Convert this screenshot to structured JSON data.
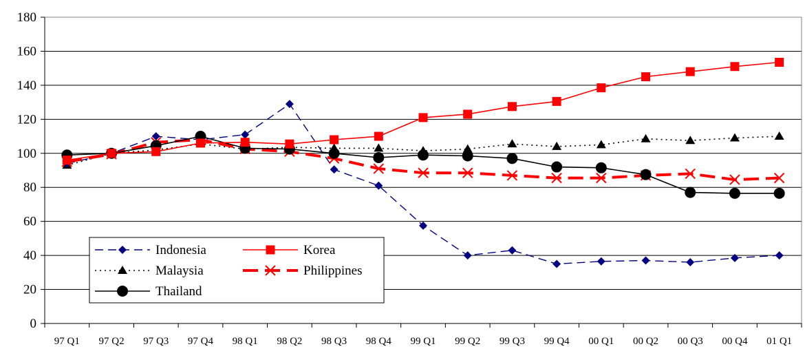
{
  "chart_data": {
    "type": "line",
    "title": "",
    "xlabel": "",
    "ylabel": "",
    "ylim": [
      0,
      180
    ],
    "yticks": [
      "0",
      "20",
      "40",
      "60",
      "80",
      "100",
      "120",
      "140",
      "160",
      "180"
    ],
    "grid": "horizontal",
    "legend_position": "bottom-left",
    "categories": [
      "97 Q1",
      "97 Q2",
      "97 Q3",
      "97 Q4",
      "98 Q1",
      "98 Q2",
      "98 Q3",
      "98 Q4",
      "99 Q1",
      "99 Q2",
      "99 Q3",
      "99 Q4",
      "00 Q1",
      "00 Q2",
      "00 Q3",
      "00 Q4",
      "01 Q1"
    ],
    "series": [
      {
        "name": "Indonesia",
        "color": "#000080",
        "line": "long-dash",
        "marker": "diamond",
        "values": [
          94,
          100,
          110,
          108,
          111,
          129,
          90.5,
          81,
          57.5,
          40,
          43,
          35,
          36.5,
          37,
          36,
          38.5,
          40
        ]
      },
      {
        "name": "Korea",
        "color": "#ff0000",
        "line": "solid",
        "marker": "square",
        "values": [
          96,
          100,
          101,
          106,
          106.5,
          105.5,
          108,
          110,
          121,
          123,
          127.5,
          130.5,
          138.5,
          145,
          148,
          151,
          153.5
        ]
      },
      {
        "name": "Malaysia",
        "color": "#000000",
        "line": "dotted",
        "marker": "triangle",
        "values": [
          93,
          100,
          102,
          105.5,
          102.5,
          103.5,
          103,
          103,
          101.5,
          102.5,
          105.5,
          104,
          105,
          108.5,
          107.5,
          109,
          110
        ]
      },
      {
        "name": "Philippines",
        "color": "#ff0000",
        "line": "thick-dash",
        "marker": "x",
        "values": [
          95,
          99.5,
          106.5,
          108,
          102.5,
          101,
          97,
          91,
          88.5,
          88.5,
          87,
          85.5,
          85.5,
          87,
          88,
          84.5,
          85.5
        ]
      },
      {
        "name": "Thailand",
        "color": "#000000",
        "line": "solid",
        "marker": "circle",
        "values": [
          99,
          100,
          104.5,
          110,
          103,
          102.5,
          100,
          97.5,
          99,
          98.5,
          97,
          92,
          91.5,
          87.5,
          77,
          76.5,
          76.5
        ]
      }
    ]
  }
}
